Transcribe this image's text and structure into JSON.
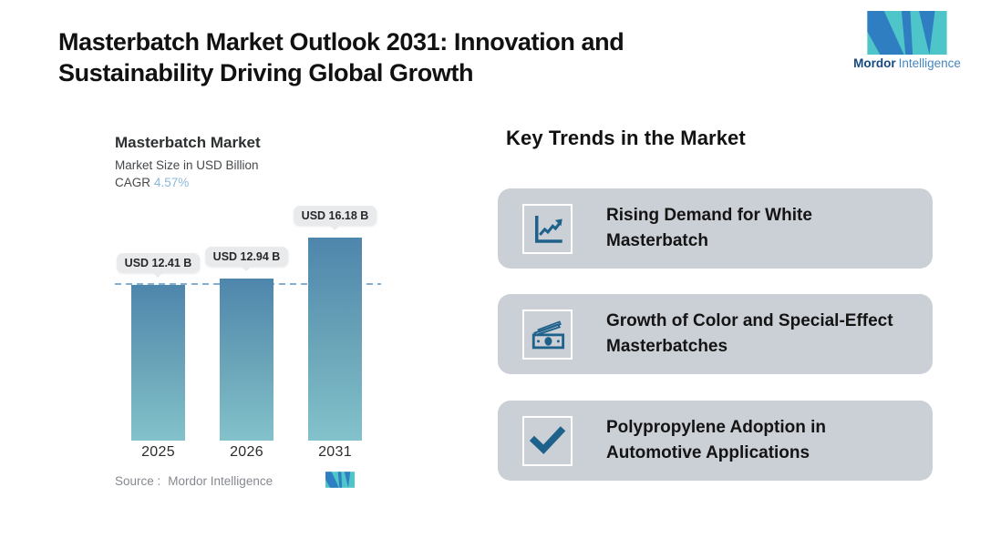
{
  "header": {
    "title": "Masterbatch Market Outlook 2031: Innovation and Sustainability Driving Global Growth",
    "brand": {
      "name_bold": "Mordor",
      "name_light": "Intelligence"
    }
  },
  "colors": {
    "logo_teal": "#4ec5c9",
    "logo_blue": "#2f7ec1",
    "bar_gradient_top": "#4e86ac",
    "bar_gradient_bottom": "#83c2cb",
    "dashed_line": "#85aed3",
    "value_pill_bg": "#e8eaec",
    "card_bg": "#cbcfd6",
    "icon_color": "#1e618a",
    "cagr_value_color": "#8cb8d8"
  },
  "chart_data": {
    "type": "bar",
    "title": "Masterbatch Market",
    "subtitle": "Market Size in USD Billion",
    "cagr_label": "CAGR",
    "cagr_value": "4.57%",
    "categories": [
      "2025",
      "2026",
      "2031"
    ],
    "values": [
      12.41,
      12.94,
      16.18
    ],
    "value_labels": [
      "USD 12.41 B",
      "USD 12.94 B",
      "USD 16.18 B"
    ],
    "ylim": [
      0,
      16.18
    ],
    "baseline_value": 12.41,
    "grid": "off",
    "legend": "none",
    "source_label": "Source :",
    "source_value": "Mordor Intelligence"
  },
  "trends": {
    "heading": "Key Trends in the Market",
    "cards": [
      {
        "icon": "line-chart-icon",
        "text": "Rising Demand for White Masterbatch"
      },
      {
        "icon": "money-icon",
        "text": "Growth of Color and Special-Effect Masterbatches"
      },
      {
        "icon": "checkmark-icon",
        "text": "Polypropylene Adoption in Automotive Applications"
      }
    ]
  }
}
